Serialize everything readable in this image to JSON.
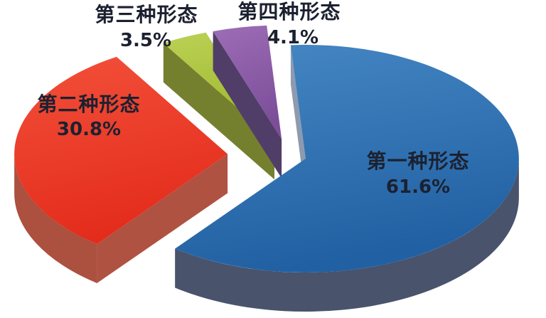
{
  "chart_data": {
    "type": "pie",
    "style": "3d-exploded",
    "unit": "percent",
    "legend_position": "none",
    "labels_on_chart": true,
    "background_color": "#FFFFFF",
    "label_text_color": "#1C2130",
    "categories": [
      "第一种形态",
      "第二种形态",
      "第三种形态",
      "第四种形态"
    ],
    "values": [
      61.6,
      30.8,
      3.5,
      4.1
    ],
    "slices": [
      {
        "label": "第一种形态",
        "value": 61.6,
        "pct_label": "61.6%",
        "top_light": "#4687C4",
        "top_dark": "#2161A3",
        "side": "#8E9AAE",
        "rim": "#49536C"
      },
      {
        "label": "第二种形态",
        "value": 30.8,
        "pct_label": "30.8%",
        "top_light": "#F2503A",
        "top_dark": "#E42C1C",
        "side": "#AF5242",
        "rim": "#AC5040"
      },
      {
        "label": "第三种形态",
        "value": 3.5,
        "pct_label": "3.5%",
        "top_light": "#BCD155",
        "top_dark": "#9DB72D",
        "side": "#75802E",
        "rim": "#75802E"
      },
      {
        "label": "第四种形态",
        "value": 4.1,
        "pct_label": "4.1%",
        "top_light": "#9D6EB6",
        "top_dark": "#7C4D99",
        "side": "#503E69",
        "rim": "#503E69"
      }
    ]
  }
}
